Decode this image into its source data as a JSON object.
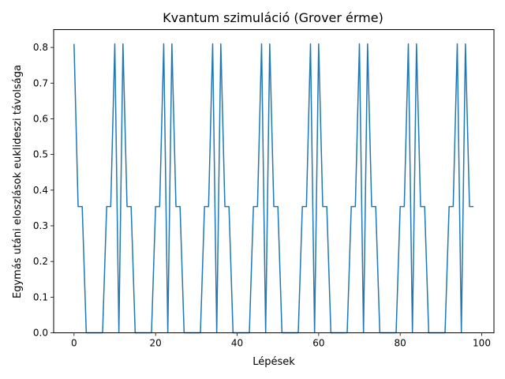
{
  "chart_data": {
    "type": "line",
    "title": "Kvantum szimuláció (Grover érme)",
    "xlabel": "Lépések",
    "ylabel": "Egymás utáni eloszlások euklideszi távolsága",
    "xlim": [
      -5,
      103
    ],
    "ylim": [
      0,
      0.85
    ],
    "x_ticks": [
      0,
      20,
      40,
      60,
      80,
      100
    ],
    "y_ticks": [
      0.0,
      0.1,
      0.2,
      0.3,
      0.4,
      0.5,
      0.6,
      0.7,
      0.8
    ],
    "grid": false,
    "colors": {
      "line": "#1f77b4"
    },
    "series": [
      {
        "x": [
          0,
          1,
          2,
          3,
          4,
          5,
          6,
          7,
          8,
          9,
          10,
          11,
          12,
          13,
          14,
          15,
          16,
          17,
          18,
          19,
          20,
          21,
          22,
          23,
          24,
          25,
          26,
          27,
          28,
          29,
          30,
          31,
          32,
          33,
          34,
          35,
          36,
          37,
          38,
          39,
          40,
          41,
          42,
          43,
          44,
          45,
          46,
          47,
          48,
          49,
          50,
          51,
          52,
          53,
          54,
          55,
          56,
          57,
          58,
          59,
          60,
          61,
          62,
          63,
          64,
          65,
          66,
          67,
          68,
          69,
          70,
          71,
          72,
          73,
          74,
          75,
          76,
          77,
          78,
          79,
          80,
          81,
          82,
          83,
          84,
          85,
          86,
          87,
          88,
          89,
          90,
          91,
          92,
          93,
          94,
          95,
          96,
          97,
          98
        ],
        "values": [
          0.81,
          0.354,
          0.354,
          0,
          0,
          0,
          0,
          0,
          0.354,
          0.354,
          0.81,
          0,
          0.81,
          0.354,
          0.354,
          0,
          0,
          0,
          0,
          0,
          0.354,
          0.354,
          0.81,
          0,
          0.81,
          0.354,
          0.354,
          0,
          0,
          0,
          0,
          0,
          0.354,
          0.354,
          0.81,
          0,
          0.81,
          0.354,
          0.354,
          0,
          0,
          0,
          0,
          0,
          0.354,
          0.354,
          0.81,
          0,
          0.81,
          0.354,
          0.354,
          0,
          0,
          0,
          0,
          0,
          0.354,
          0.354,
          0.81,
          0,
          0.81,
          0.354,
          0.354,
          0,
          0,
          0,
          0,
          0,
          0.354,
          0.354,
          0.81,
          0,
          0.81,
          0.354,
          0.354,
          0,
          0,
          0,
          0,
          0,
          0.354,
          0.354,
          0.81,
          0,
          0.81,
          0.354,
          0.354,
          0,
          0,
          0,
          0,
          0,
          0.354,
          0.354,
          0.81,
          0,
          0.81,
          0.354,
          0.354
        ]
      }
    ]
  }
}
